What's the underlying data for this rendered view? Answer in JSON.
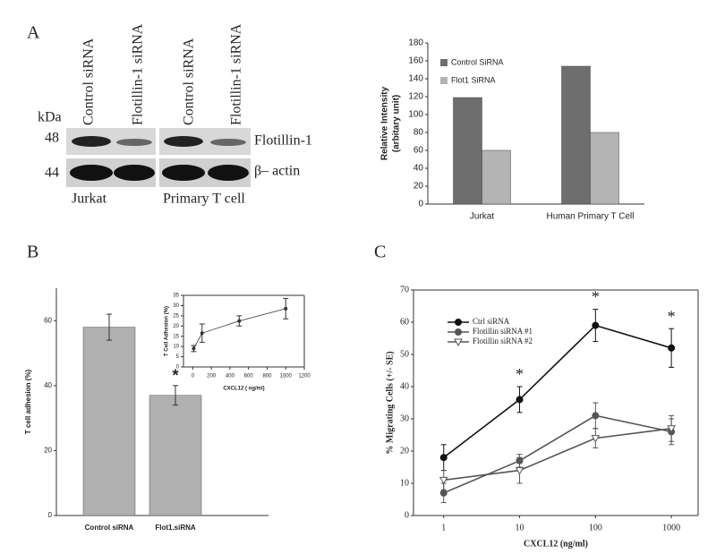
{
  "panel_labels": [
    "A",
    "B",
    "C"
  ],
  "blot": {
    "kda": "kDa",
    "markers": [
      "48",
      "44"
    ],
    "lanes": [
      "Control siRNA",
      "Flotillin-1 siRNA",
      "Control siRNA",
      "Flotillin-1 siRNA"
    ],
    "proteins": [
      "Flotillin-1",
      "β– actin"
    ],
    "cell_types": [
      "Jurkat",
      "Primary T  cell"
    ]
  },
  "chart_data": [
    {
      "type": "bar",
      "ylabel": [
        "Relative Intensity",
        "(arbitary unit)"
      ],
      "categories": [
        "Jurkat",
        "Human Primary T Cell"
      ],
      "series": [
        {
          "name": "Control SiRNA",
          "color": "#6e6e6e",
          "values": [
            119,
            154
          ]
        },
        {
          "name": "Flot1 SiRNA",
          "color": "#b4b4b4",
          "values": [
            60,
            80
          ]
        }
      ],
      "ylim": [
        0,
        180
      ],
      "yticks": [
        0,
        20,
        40,
        60,
        80,
        100,
        120,
        140,
        160,
        180
      ],
      "legend": "upper left"
    },
    {
      "type": "bar",
      "ylabel": "T cell adhesion (%)",
      "categories": [
        "Control siRNA",
        "Flot1.siRNA"
      ],
      "values": [
        58,
        37
      ],
      "errors": [
        4,
        3
      ],
      "color": "#b0b0b0",
      "ylim": [
        0,
        70
      ],
      "yticks": [
        0,
        20,
        40,
        60
      ],
      "annotations": [
        {
          "text": "*",
          "index": 1
        }
      ]
    },
    {
      "type": "line",
      "xlabel": "CXCL12  ( ng/ml)",
      "ylabel": "T Cell Adhesion (%)",
      "x": [
        10,
        100,
        500,
        1000
      ],
      "values": [
        9,
        16.5,
        22.5,
        28.5
      ],
      "errors": [
        1.5,
        4.5,
        2.5,
        5
      ],
      "color": "#333333",
      "xlim": [
        -100,
        1200
      ],
      "xticks": [
        0,
        200,
        400,
        600,
        800,
        1000,
        1200
      ],
      "ylim": [
        0,
        35
      ],
      "yticks": [
        0,
        5,
        10,
        15,
        20,
        25,
        30,
        35
      ]
    },
    {
      "type": "line",
      "xlabel": "CXCL12 (ng/ml)",
      "ylabel": "% Migrating Cells (+/- SE)",
      "xscale": "log",
      "x": [
        1,
        10,
        100,
        1000
      ],
      "series": [
        {
          "name": "Ctrl siRNA",
          "color": "#111111",
          "marker": "circle",
          "values": [
            18,
            36,
            59,
            52
          ],
          "errors": [
            4,
            4,
            5,
            6
          ]
        },
        {
          "name": "Flotillin siRNA #1",
          "color": "#555555",
          "marker": "circle",
          "values": [
            7,
            17,
            31,
            26
          ],
          "errors": [
            3,
            2,
            4,
            4
          ]
        },
        {
          "name": "Flotillin siRNA #2",
          "color": "#555555",
          "marker": "triangle-open",
          "values": [
            11,
            14,
            24,
            27
          ],
          "errors": [
            3,
            4,
            3,
            4
          ]
        }
      ],
      "xlim": [
        0.4,
        2250
      ],
      "xticks": [
        1,
        10,
        100,
        1000
      ],
      "ylim": [
        0,
        70
      ],
      "yticks": [
        0,
        10,
        20,
        30,
        40,
        50,
        60,
        70
      ],
      "legend": "upper left",
      "annotations": [
        {
          "text": "*",
          "x": 10
        },
        {
          "text": "*",
          "x": 100
        },
        {
          "text": "*",
          "x": 1000
        }
      ]
    }
  ]
}
